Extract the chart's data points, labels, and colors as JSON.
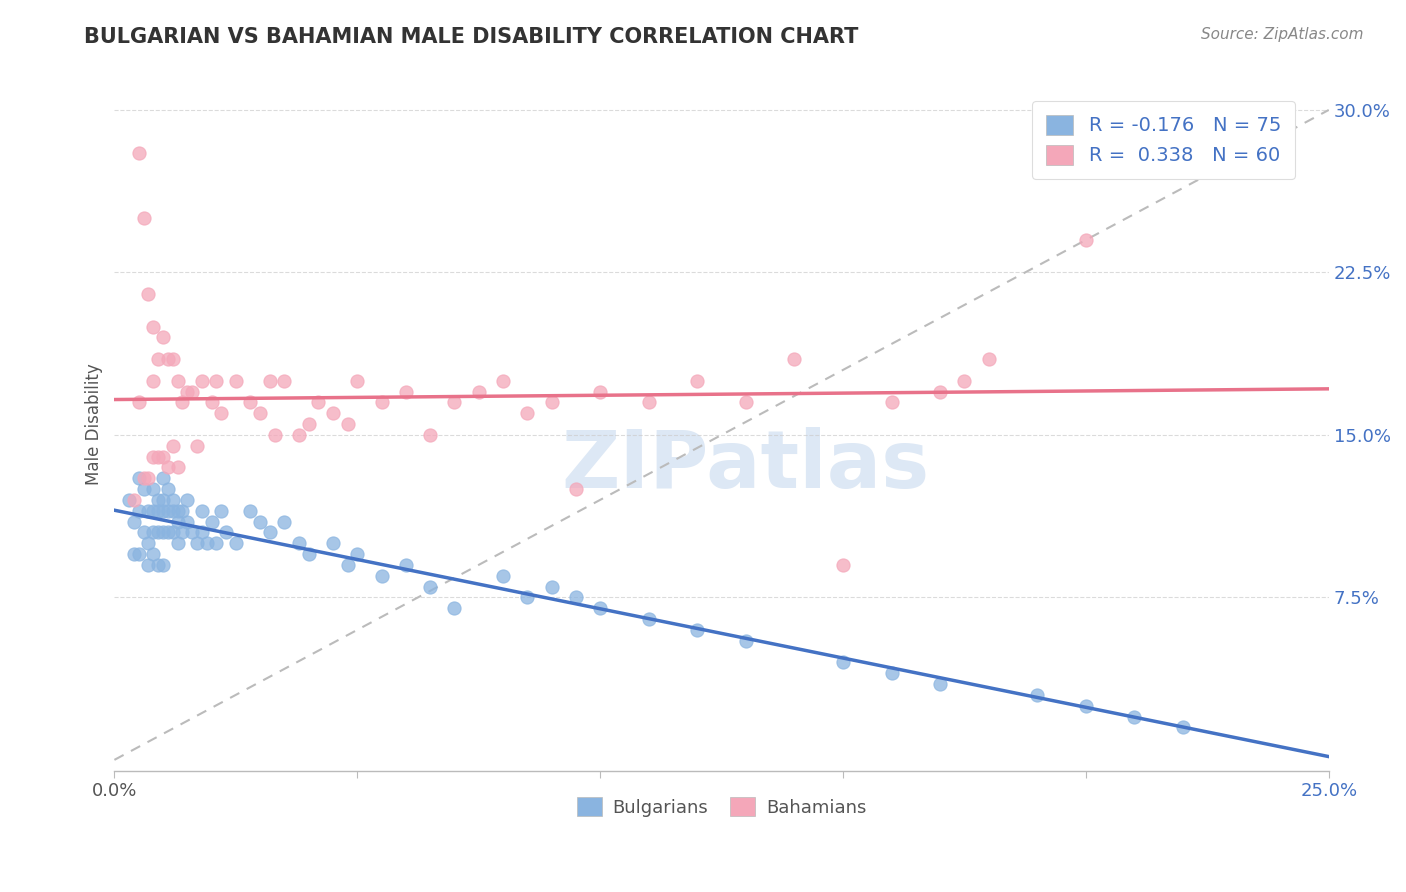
{
  "title": "BULGARIAN VS BAHAMIAN MALE DISABILITY CORRELATION CHART",
  "source": "Source: ZipAtlas.com",
  "ylabel": "Male Disability",
  "xlim": [
    0.0,
    0.25
  ],
  "ylim": [
    -0.005,
    0.315
  ],
  "blue_color": "#8ab4e0",
  "pink_color": "#f4a7b9",
  "blue_line_color": "#4472c4",
  "pink_line_color": "#e8728a",
  "grid_color": "#cccccc",
  "r_color": "#4472c4",
  "watermark_color": "#dde8f5",
  "bulgarians_x": [
    0.003,
    0.004,
    0.004,
    0.005,
    0.005,
    0.005,
    0.006,
    0.006,
    0.007,
    0.007,
    0.007,
    0.008,
    0.008,
    0.008,
    0.008,
    0.009,
    0.009,
    0.009,
    0.009,
    0.01,
    0.01,
    0.01,
    0.01,
    0.01,
    0.011,
    0.011,
    0.011,
    0.012,
    0.012,
    0.012,
    0.013,
    0.013,
    0.013,
    0.014,
    0.014,
    0.015,
    0.015,
    0.016,
    0.017,
    0.018,
    0.018,
    0.019,
    0.02,
    0.021,
    0.022,
    0.023,
    0.025,
    0.028,
    0.03,
    0.032,
    0.035,
    0.038,
    0.04,
    0.045,
    0.048,
    0.05,
    0.055,
    0.06,
    0.065,
    0.07,
    0.08,
    0.085,
    0.09,
    0.095,
    0.1,
    0.11,
    0.12,
    0.13,
    0.15,
    0.16,
    0.17,
    0.19,
    0.2,
    0.21,
    0.22
  ],
  "bulgarians_y": [
    0.12,
    0.11,
    0.095,
    0.13,
    0.115,
    0.095,
    0.125,
    0.105,
    0.115,
    0.1,
    0.09,
    0.125,
    0.115,
    0.105,
    0.095,
    0.12,
    0.115,
    0.105,
    0.09,
    0.13,
    0.12,
    0.115,
    0.105,
    0.09,
    0.125,
    0.115,
    0.105,
    0.12,
    0.115,
    0.105,
    0.11,
    0.115,
    0.1,
    0.115,
    0.105,
    0.12,
    0.11,
    0.105,
    0.1,
    0.115,
    0.105,
    0.1,
    0.11,
    0.1,
    0.115,
    0.105,
    0.1,
    0.115,
    0.11,
    0.105,
    0.11,
    0.1,
    0.095,
    0.1,
    0.09,
    0.095,
    0.085,
    0.09,
    0.08,
    0.07,
    0.085,
    0.075,
    0.08,
    0.075,
    0.07,
    0.065,
    0.06,
    0.055,
    0.045,
    0.04,
    0.035,
    0.03,
    0.025,
    0.02,
    0.015
  ],
  "bahamians_x": [
    0.004,
    0.005,
    0.005,
    0.006,
    0.006,
    0.007,
    0.007,
    0.008,
    0.008,
    0.008,
    0.009,
    0.009,
    0.01,
    0.01,
    0.011,
    0.011,
    0.012,
    0.012,
    0.013,
    0.013,
    0.014,
    0.015,
    0.016,
    0.017,
    0.018,
    0.02,
    0.021,
    0.022,
    0.025,
    0.028,
    0.03,
    0.032,
    0.033,
    0.035,
    0.038,
    0.04,
    0.042,
    0.045,
    0.048,
    0.05,
    0.055,
    0.06,
    0.065,
    0.07,
    0.075,
    0.08,
    0.085,
    0.09,
    0.095,
    0.1,
    0.11,
    0.12,
    0.13,
    0.14,
    0.15,
    0.16,
    0.17,
    0.175,
    0.18,
    0.2
  ],
  "bahamians_y": [
    0.12,
    0.28,
    0.165,
    0.25,
    0.13,
    0.215,
    0.13,
    0.2,
    0.175,
    0.14,
    0.185,
    0.14,
    0.195,
    0.14,
    0.185,
    0.135,
    0.185,
    0.145,
    0.175,
    0.135,
    0.165,
    0.17,
    0.17,
    0.145,
    0.175,
    0.165,
    0.175,
    0.16,
    0.175,
    0.165,
    0.16,
    0.175,
    0.15,
    0.175,
    0.15,
    0.155,
    0.165,
    0.16,
    0.155,
    0.175,
    0.165,
    0.17,
    0.15,
    0.165,
    0.17,
    0.175,
    0.16,
    0.165,
    0.125,
    0.17,
    0.165,
    0.175,
    0.165,
    0.185,
    0.09,
    0.165,
    0.17,
    0.175,
    0.185,
    0.24
  ]
}
